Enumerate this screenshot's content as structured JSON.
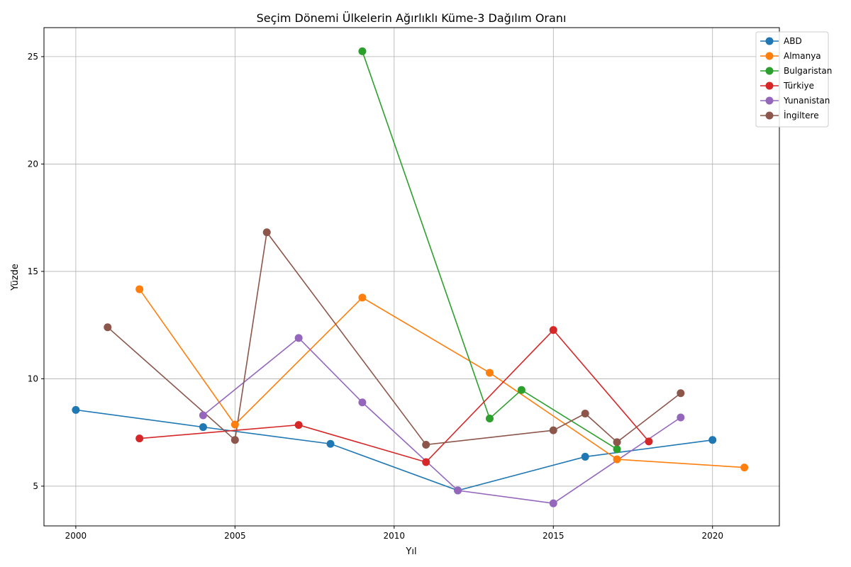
{
  "chart_data": {
    "type": "line",
    "title": "Seçim Dönemi Ülkelerin Ağırlıklı Küme-3 Dağılım Oranı",
    "xlabel": "Yıl",
    "ylabel": "Yüzde",
    "xlim": [
      1999,
      2022.1
    ],
    "ylim": [
      3.15,
      26.35
    ],
    "xticks": [
      2000,
      2005,
      2010,
      2015,
      2020
    ],
    "yticks": [
      5,
      10,
      15,
      20,
      25
    ],
    "grid": true,
    "legend_position": "top-right",
    "series": [
      {
        "name": "ABD",
        "color": "#1f77b4",
        "points": [
          [
            2000,
            8.55
          ],
          [
            2004,
            7.75
          ],
          [
            2008,
            6.97
          ],
          [
            2012,
            4.8
          ],
          [
            2016,
            6.37
          ],
          [
            2020,
            7.15
          ]
        ]
      },
      {
        "name": "Almanya",
        "color": "#ff7f0e",
        "points": [
          [
            2002,
            14.17
          ],
          [
            2005,
            7.87
          ],
          [
            2009,
            13.78
          ],
          [
            2013,
            10.28
          ],
          [
            2017,
            6.25
          ],
          [
            2021,
            5.87
          ]
        ]
      },
      {
        "name": "Bulgaristan",
        "color": "#2ca02c",
        "points": [
          [
            2009,
            25.25
          ],
          [
            2013,
            8.15
          ],
          [
            2014,
            9.48
          ],
          [
            2017,
            6.72
          ]
        ]
      },
      {
        "name": "Türkiye",
        "color": "#d62728",
        "points": [
          [
            2002,
            7.22
          ],
          [
            2007,
            7.85
          ],
          [
            2011,
            6.12
          ],
          [
            2015,
            12.27
          ],
          [
            2018,
            7.08
          ]
        ]
      },
      {
        "name": "Yunanistan",
        "color": "#9467bd",
        "points": [
          [
            2004,
            8.3
          ],
          [
            2007,
            11.9
          ],
          [
            2009,
            8.9
          ],
          [
            2012,
            4.8
          ],
          [
            2015,
            4.2
          ],
          [
            2019,
            8.2
          ]
        ]
      },
      {
        "name": "İngiltere",
        "color": "#8c564b",
        "points": [
          [
            2001,
            12.4
          ],
          [
            2005,
            7.15
          ],
          [
            2006,
            16.82
          ],
          [
            2011,
            6.93
          ],
          [
            2015,
            7.6
          ],
          [
            2016,
            8.38
          ],
          [
            2017,
            7.05
          ],
          [
            2019,
            9.33
          ]
        ]
      }
    ]
  }
}
